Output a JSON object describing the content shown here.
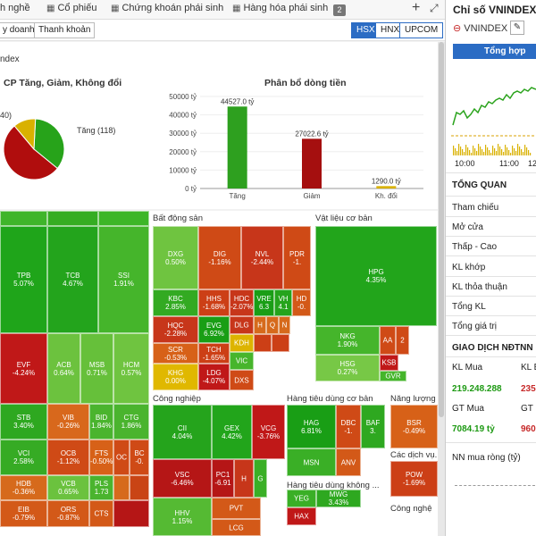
{
  "top_tabs": [
    {
      "label": "h nghề",
      "icon": ""
    },
    {
      "label": "Cổ phiếu",
      "icon": "grid-icon"
    },
    {
      "label": "Chứng khoán phái sinh",
      "icon": "grid-icon"
    },
    {
      "label": "Hàng hóa phái sinh",
      "icon": "grid-icon"
    }
  ],
  "tab_badge": "2",
  "tab_plus": "+",
  "tab_expand": "⤢",
  "subtabs": [
    "y doanh",
    "Thanh khoản"
  ],
  "exchanges": [
    "HSX",
    "HNX",
    "UPCOM"
  ],
  "active_exchange": "HSX",
  "panel_title": "ndex",
  "pie": {
    "title": "CP Tăng, Giảm, Không đổi",
    "labels": [
      "40)",
      "Tăng (118)"
    ],
    "slices": [
      {
        "name": "Tăng",
        "value": 118,
        "color": "#27a31a"
      },
      {
        "name": "Giảm",
        "value": 178,
        "color": "#b00d0d"
      },
      {
        "name": "Không đổi",
        "value": 40,
        "color": "#d9b100"
      }
    ]
  },
  "chart_data": {
    "type": "bar",
    "title": "Phân bổ dòng tiền",
    "categories": [
      "Tăng",
      "Giảm",
      "Kh. đổi"
    ],
    "values": [
      44527.0,
      27022.6,
      1290.0
    ],
    "data_labels": [
      "44527.0 tỷ",
      "27022.6 tỷ",
      "1290.0 tỷ"
    ],
    "colors": [
      "#2ea01f",
      "#a50f0f",
      "#d9b100"
    ],
    "ylim": [
      0,
      50000
    ],
    "yticks": [
      0,
      10000,
      20000,
      30000,
      40000,
      50000
    ],
    "ytick_labels": [
      "0 tỷ",
      "10000 tỷ",
      "20000 tỷ",
      "30000 tỷ",
      "40000 tỷ",
      "50000 tỷ"
    ]
  },
  "heatmap": {
    "sections": [
      {
        "title": "Bất động sản"
      },
      {
        "title": "Vật liệu cơ bản"
      },
      {
        "title": "Công nghiệp"
      },
      {
        "title": "Hàng tiêu dùng cơ bản"
      },
      {
        "title": "Năng lượng"
      },
      {
        "title": "Hàng tiêu dùng không ..."
      },
      {
        "title": "Các dịch vụ..."
      },
      {
        "title": "Công nghệ"
      }
    ],
    "cells": [
      {
        "t": "",
        "p": "",
        "c": "#3fb52a"
      },
      {
        "t": "",
        "p": "",
        "c": "#35ad22"
      },
      {
        "t": "",
        "p": "",
        "c": "#3db627"
      },
      {
        "t": "TPB",
        "p": "5.07%",
        "c": "#1fa51a"
      },
      {
        "t": "TCB",
        "p": "4.67%",
        "c": "#23a41c"
      },
      {
        "t": "SSI",
        "p": "1.91%",
        "c": "#45b52b"
      },
      {
        "t": "EVF",
        "p": "-4.24%",
        "c": "#c01818"
      },
      {
        "t": "ACB",
        "p": "0.64%",
        "c": "#6cc23e"
      },
      {
        "t": "MSB",
        "p": "0.71%",
        "c": "#66c03a"
      },
      {
        "t": "HCM",
        "p": "0.57%",
        "c": "#6fc440"
      },
      {
        "t": "STB",
        "p": "3.40%",
        "c": "#2ea820"
      },
      {
        "t": "VIB",
        "p": "-0.26%",
        "c": "#d8681c"
      },
      {
        "t": "BID",
        "p": "1.84%",
        "c": "#4ab42e"
      },
      {
        "t": "CTG",
        "p": "1.86%",
        "c": "#4ab42e"
      },
      {
        "t": "VCI",
        "p": "2.58%",
        "c": "#36ab24"
      },
      {
        "t": "OCB",
        "p": "-1.12%",
        "c": "#cf4a16"
      },
      {
        "t": "FTS",
        "p": "-0.50%",
        "c": "#d76118"
      },
      {
        "t": "OC",
        "p": "",
        "c": "#cf4a16"
      },
      {
        "t": "BC",
        "p": "-0.",
        "c": "#cf4a16"
      },
      {
        "t": "HDB",
        "p": "-0.36%",
        "c": "#d66a1c"
      },
      {
        "t": "VCB",
        "p": "0.65%",
        "c": "#6bc23e"
      },
      {
        "t": "PLS",
        "p": "1.73",
        "c": "#4ab42e"
      },
      {
        "t": "",
        "p": "",
        "c": "#d66a1c"
      },
      {
        "t": "",
        "p": "",
        "c": "#c94415"
      },
      {
        "t": "EIB",
        "p": "-0.79%",
        "c": "#d35918"
      },
      {
        "t": "ORS",
        "p": "-0.87%",
        "c": "#d35918"
      },
      {
        "t": "CTS",
        "p": "",
        "c": "#d35918"
      },
      {
        "t": "",
        "p": "",
        "c": "#b51616"
      },
      {
        "t": "DXG",
        "p": "0.50%",
        "c": "#6fc440"
      },
      {
        "t": "DIG",
        "p": "-1.16%",
        "c": "#cf4a16"
      },
      {
        "t": "NVL",
        "p": "-2.44%",
        "c": "#c7361a"
      },
      {
        "t": "PDR",
        "p": "-1.",
        "c": "#cf4a16"
      },
      {
        "t": "HPG",
        "p": "4.35%",
        "c": "#22a51b"
      },
      {
        "t": "KBC",
        "p": "2.85%",
        "c": "#33aa22"
      },
      {
        "t": "HHS",
        "p": "-1.68%",
        "c": "#cc3f16"
      },
      {
        "t": "HDC",
        "p": "-2.07%",
        "c": "#c7361a"
      },
      {
        "t": "VRE",
        "p": "6.3",
        "c": "#1a9e16"
      },
      {
        "t": "VH",
        "p": "4.1",
        "c": "#25a41c"
      },
      {
        "t": "HD",
        "p": "-0.",
        "c": "#d35918"
      },
      {
        "t": "HQC",
        "p": "-2.28%",
        "c": "#c7361a"
      },
      {
        "t": "EVG",
        "p": "6.92%",
        "c": "#199e15"
      },
      {
        "t": "DLG",
        "p": "",
        "c": "#c7361a"
      },
      {
        "t": "H",
        "p": "",
        "c": "#d66a1c"
      },
      {
        "t": "Q",
        "p": "",
        "c": "#d66a1c"
      },
      {
        "t": "N",
        "p": "",
        "c": "#d66a1c"
      },
      {
        "t": "SCR",
        "p": "-0.53%",
        "c": "#d76118"
      },
      {
        "t": "TCH",
        "p": "-1.65%",
        "c": "#cc3f16"
      },
      {
        "t": "KDH",
        "p": "",
        "c": "#ddb400"
      },
      {
        "t": "",
        "p": "",
        "c": "#cc3f16"
      },
      {
        "t": "",
        "p": "",
        "c": "#cc3f16"
      },
      {
        "t": "NKG",
        "p": "1.90%",
        "c": "#45b52b"
      },
      {
        "t": "AA",
        "p": "",
        "c": "#cf4a16"
      },
      {
        "t": "2",
        "p": "",
        "c": "#cf4a16"
      },
      {
        "t": "KHG",
        "p": "0.00%",
        "c": "#e0b800"
      },
      {
        "t": "LDG",
        "p": "-4.07%",
        "c": "#c01818"
      },
      {
        "t": "VIC",
        "p": "",
        "c": "#47b52c"
      },
      {
        "t": "HSG",
        "p": "0.27%",
        "c": "#77c846"
      },
      {
        "t": "KSB",
        "p": "",
        "c": "#c01818"
      },
      {
        "t": "DXS",
        "p": "",
        "c": "#cf4a16"
      },
      {
        "t": "GVR",
        "p": "",
        "c": "#45b52b"
      },
      {
        "t": "CII",
        "p": "4.04%",
        "c": "#25a41c"
      },
      {
        "t": "GEX",
        "p": "4.42%",
        "c": "#22a51b"
      },
      {
        "t": "VCG",
        "p": "-3.76%",
        "c": "#c01818"
      },
      {
        "t": "HAG",
        "p": "6.81%",
        "c": "#199e15"
      },
      {
        "t": "DBC",
        "p": "-1.",
        "c": "#cf4a16"
      },
      {
        "t": "BAF",
        "p": "3.",
        "c": "#2ea820"
      },
      {
        "t": "BSR",
        "p": "-0.49%",
        "c": "#d76118"
      },
      {
        "t": "VSC",
        "p": "-6.46%",
        "c": "#b51616"
      },
      {
        "t": "PC1",
        "p": "-6.91",
        "c": "#b51616"
      },
      {
        "t": "H",
        "p": "",
        "c": "#c7361a"
      },
      {
        "t": "G",
        "p": "",
        "c": "#3aaf26"
      },
      {
        "t": "MSN",
        "p": "",
        "c": "#3aaf26"
      },
      {
        "t": "ANV",
        "p": "",
        "c": "#d35918"
      },
      {
        "t": "POW",
        "p": "-1.69%",
        "c": "#cc3f16"
      },
      {
        "t": "PVT",
        "p": "",
        "c": "#d35918"
      },
      {
        "t": "YEG",
        "p": "",
        "c": "#3aaf26"
      },
      {
        "t": "MWG",
        "p": "3.43%",
        "c": "#2ea820"
      },
      {
        "t": "HHV",
        "p": "1.15%",
        "c": "#55ba33"
      },
      {
        "t": "LCG",
        "p": "",
        "c": "#d35918"
      },
      {
        "t": "HAX",
        "p": "",
        "c": "#c01818"
      }
    ]
  },
  "right_panel": {
    "title": "Chỉ số VNINDEX",
    "selector": "VNINDEX",
    "button": "Tổng hợp",
    "times": [
      "10:00",
      "11:00",
      "12"
    ],
    "overview_title": "TỔNG QUAN",
    "rows": [
      "Tham chiếu",
      "Mở cửa",
      "Thấp - Cao",
      "KL khớp",
      "KL thỏa thuận",
      "Tổng KL",
      "Tổng giá trị"
    ],
    "foreign_title": "GIAO DỊCH NĐTNN",
    "kl_mua_label": "KL Mua",
    "kl_ban_label": "KL B",
    "kl_mua_value": "219.248.288",
    "kl_ban_value": "235.",
    "gt_mua_label": "GT Mua",
    "gt_ban_label": "GT B",
    "gt_mua_value": "7084.19 tỷ",
    "gt_ban_value": "960",
    "net_title": "NN mua ròng (tỷ)"
  }
}
